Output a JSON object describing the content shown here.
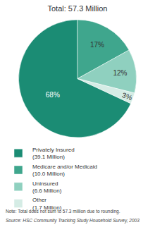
{
  "chart_data": {
    "type": "pie",
    "title": "Total: 57.3 Million",
    "categories": [
      "Privately Insured (39.1 Million)",
      "Medicare and/or Medicaid (10.0 Million)",
      "Uninsured (6.6 Million)",
      "Other (1.7 Million)"
    ],
    "values": [
      68,
      17,
      12,
      3
    ],
    "value_labels": [
      "68%",
      "17%",
      "12%",
      "3%"
    ],
    "colors": [
      "#1b8c74",
      "#3fa68d",
      "#8fd0bf",
      "#d5ece5"
    ],
    "data_labels": true,
    "legend": "bottom",
    "annotations": [
      "Note: Total does not sum to 57.3 million due to rounding.",
      "Source: HSC Community Tracking Study Household Survey, 2003"
    ]
  }
}
